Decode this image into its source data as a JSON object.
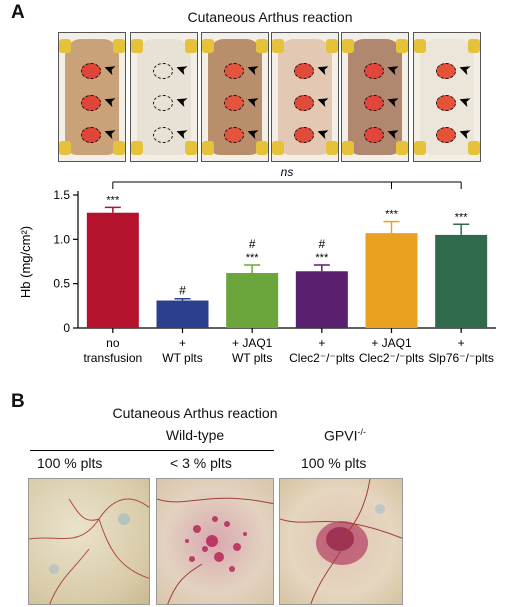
{
  "panelA": {
    "letter": "A",
    "title": "Cutaneous Arthus reaction",
    "photos": [
      {
        "name": "no-transfusion",
        "bg": "#c9a27a",
        "spot": "#e0453a",
        "dashed": false
      },
      {
        "name": "wt-plts",
        "bg": "#e8e2d6",
        "spot": "#d8c9b8",
        "dashed": true
      },
      {
        "name": "jaq1-wt",
        "bg": "#b88f6a",
        "spot": "#e4553d",
        "dashed": false
      },
      {
        "name": "clec2-plts",
        "bg": "#e3c9b4",
        "spot": "#e24b3a",
        "dashed": false
      },
      {
        "name": "jaq1-clec2",
        "bg": "#b08870",
        "spot": "#e4453a",
        "dashed": false
      },
      {
        "name": "slp76-plts",
        "bg": "#ece5da",
        "spot": "#e45238",
        "dashed": false
      }
    ]
  },
  "chart_data": {
    "type": "bar",
    "ylabel": "Hb (mg/cm²)",
    "ylim": [
      0,
      1.5
    ],
    "yticks": [
      "0",
      "0.5",
      "1.0",
      "1.5"
    ],
    "ytick_values": [
      0,
      0.5,
      1.0,
      1.5
    ],
    "categories": [
      {
        "line1": "no",
        "line2": "transfusion"
      },
      {
        "line1": "+",
        "line2": "WT plts"
      },
      {
        "line1": "+ JAQ1",
        "line2": "WT plts"
      },
      {
        "line1": "+",
        "line2": "Clec2⁻/⁻plts"
      },
      {
        "line1": "+ JAQ1",
        "line2": "Clec2⁻/⁻plts"
      },
      {
        "line1": "+",
        "line2": "Slp76⁻/⁻plts"
      }
    ],
    "values": [
      1.3,
      0.31,
      0.62,
      0.64,
      1.07,
      1.05
    ],
    "errors": [
      0.06,
      0.02,
      0.09,
      0.07,
      0.13,
      0.12
    ],
    "colors": [
      "#b5122e",
      "#2c3f8c",
      "#6ba53c",
      "#5a1f6e",
      "#e9a11f",
      "#2f6a4c"
    ],
    "stars": [
      "***",
      "",
      "***",
      "***",
      "***",
      "***"
    ],
    "hashes": [
      "",
      "#",
      "#",
      "#",
      "",
      ""
    ],
    "bracket_label": "ns"
  },
  "panelB": {
    "letter": "B",
    "title": "Cutaneous Arthus reaction",
    "group_wt": "Wild-type",
    "group_gpvi": "GPVI",
    "group_gpvi_sup": "-/-",
    "labels": [
      "100 % plts",
      "< 3 % plts",
      "100 % plts"
    ]
  }
}
